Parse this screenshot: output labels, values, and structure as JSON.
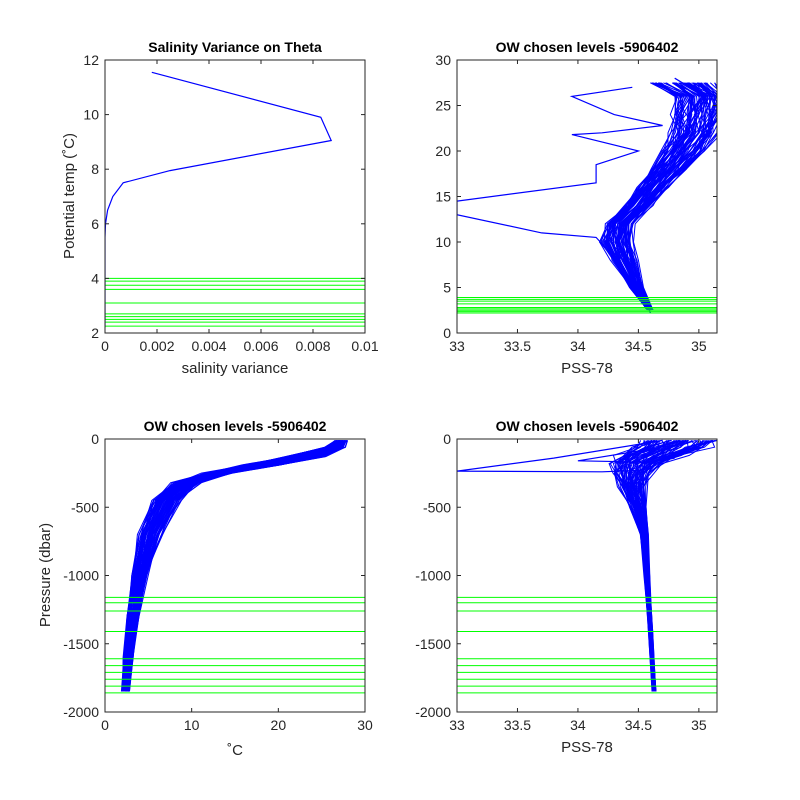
{
  "chart_data": [
    {
      "type": "line",
      "title": "Salinity Variance on Theta",
      "xlabel": "salinity variance",
      "ylabel": "Potential temp (˚C)",
      "xlim": [
        0,
        0.01
      ],
      "ylim": [
        2,
        12
      ],
      "xticks": [
        0,
        0.002,
        0.004,
        0.006,
        0.008,
        0.01
      ],
      "xtick_labels": [
        "0",
        "0.002",
        "0.004",
        "0.006",
        "0.008",
        "0.01"
      ],
      "yticks": [
        2,
        4,
        6,
        8,
        10,
        12
      ],
      "ytick_labels": [
        "2",
        "4",
        "6",
        "8",
        "10",
        "12"
      ],
      "series": [
        {
          "color": "#0000ff",
          "points": [
            [
              0.0018,
              11.55
            ],
            [
              0.0083,
              9.9
            ],
            [
              0.0087,
              9.05
            ],
            [
              0.0025,
              7.95
            ],
            [
              0.0007,
              7.5
            ],
            [
              0.0003,
              7.0
            ],
            [
              0.0001,
              6.5
            ],
            [
              2e-05,
              6.0
            ],
            [
              0.0,
              5.5
            ],
            [
              0.0,
              2.2
            ]
          ]
        }
      ],
      "hlines": [
        2.25,
        2.4,
        2.5,
        2.6,
        2.7,
        3.1,
        3.6,
        3.75,
        3.9,
        4.0
      ],
      "hline_color": "#00ff00"
    },
    {
      "type": "line",
      "title": "OW chosen levels -5906402",
      "xlabel": "PSS-78",
      "ylabel": "",
      "xlim": [
        33,
        35.15
      ],
      "ylim": [
        0,
        30
      ],
      "xticks": [
        33,
        33.5,
        34,
        34.5,
        35
      ],
      "xtick_labels": [
        "33",
        "33.5",
        "34",
        "34.5",
        "35"
      ],
      "yticks": [
        0,
        5,
        10,
        15,
        20,
        25,
        30
      ],
      "ytick_labels": [
        "0",
        "5",
        "10",
        "15",
        "20",
        "25",
        "30"
      ],
      "series": [
        {
          "color": "#0000ff",
          "points": [
            [
              34.6,
              2.2
            ],
            [
              34.52,
              5.0
            ],
            [
              34.42,
              8.0
            ],
            [
              34.3,
              9.5
            ],
            [
              34.25,
              11.0
            ],
            [
              34.32,
              13.0
            ],
            [
              34.45,
              15.0
            ],
            [
              34.6,
              17.0
            ],
            [
              34.75,
              19.5
            ],
            [
              34.9,
              22.0
            ],
            [
              35.0,
              24.0
            ],
            [
              35.05,
              26.0
            ],
            [
              34.8,
              28.0
            ]
          ]
        },
        {
          "color": "#0000ff",
          "points": [
            [
              34.6,
              2.2
            ],
            [
              34.5,
              5.0
            ],
            [
              34.38,
              8.0
            ],
            [
              34.22,
              9.5
            ],
            [
              34.15,
              10.5
            ],
            [
              33.7,
              11.0
            ],
            [
              33.0,
              13.0
            ],
            [
              33.0,
              14.5
            ],
            [
              34.15,
              16.5
            ],
            [
              34.15,
              18.5
            ],
            [
              34.5,
              20.0
            ],
            [
              33.95,
              21.8
            ],
            [
              34.2,
              22.0
            ],
            [
              34.7,
              22.8
            ],
            [
              34.3,
              24.0
            ],
            [
              33.95,
              26.0
            ],
            [
              34.45,
              27.0
            ]
          ]
        }
      ],
      "band_center": [
        [
          34.6,
          2.5
        ],
        [
          34.48,
          5.0
        ],
        [
          34.38,
          8.0
        ],
        [
          34.32,
          10.0
        ],
        [
          34.35,
          12.0
        ],
        [
          34.5,
          14.0
        ],
        [
          34.62,
          16.0
        ],
        [
          34.75,
          18.0
        ],
        [
          34.87,
          20.0
        ],
        [
          34.96,
          22.0
        ],
        [
          35.0,
          24.0
        ],
        [
          35.02,
          26.0
        ],
        [
          34.85,
          27.5
        ]
      ],
      "band_half_width": [
        0.02,
        0.05,
        0.1,
        0.12,
        0.1,
        0.1,
        0.12,
        0.14,
        0.16,
        0.18,
        0.2,
        0.2,
        0.25
      ],
      "hlines": [
        2.2,
        2.35,
        2.5,
        2.65,
        2.8,
        3.2,
        3.5,
        3.7,
        3.9
      ],
      "hline_color": "#00ff00"
    },
    {
      "type": "line",
      "title": "OW chosen levels -5906402",
      "xlabel": "˚C",
      "ylabel": "Pressure (dbar)",
      "xlim": [
        0,
        30
      ],
      "ylim": [
        -2000,
        0
      ],
      "xticks": [
        0,
        10,
        20,
        30
      ],
      "xtick_labels": [
        "0",
        "10",
        "20",
        "30"
      ],
      "yticks": [
        -2000,
        -1500,
        -1000,
        -500,
        0
      ],
      "ytick_labels": [
        "-2000",
        "-1500",
        "-1000",
        "-500",
        "0"
      ],
      "band_center": [
        [
          2.4,
          -1850
        ],
        [
          2.7,
          -1600
        ],
        [
          3.2,
          -1300
        ],
        [
          4.0,
          -1000
        ],
        [
          5.2,
          -700
        ],
        [
          7.0,
          -450
        ],
        [
          9.5,
          -320
        ],
        [
          13.0,
          -250
        ],
        [
          18.0,
          -190
        ],
        [
          23.0,
          -130
        ],
        [
          26.5,
          -60
        ],
        [
          27.3,
          -10
        ]
      ],
      "band_half_width": [
        0.4,
        0.5,
        0.6,
        0.8,
        1.2,
        1.5,
        1.5,
        1.5,
        2.0,
        2.0,
        1.0,
        0.6
      ],
      "hlines": [
        -1160,
        -1200,
        -1260,
        -1410,
        -1610,
        -1660,
        -1710,
        -1760,
        -1810,
        -1860
      ],
      "hline_color": "#00ff00"
    },
    {
      "type": "line",
      "title": "OW chosen levels -5906402",
      "xlabel": "PSS-78",
      "ylabel": "",
      "xlim": [
        33,
        35.15
      ],
      "ylim": [
        -2000,
        0
      ],
      "xticks": [
        33,
        33.5,
        34,
        34.5,
        35
      ],
      "xtick_labels": [
        "33",
        "33.5",
        "34",
        "34.5",
        "35"
      ],
      "yticks": [
        -2000,
        -1500,
        -1000,
        -500,
        0
      ],
      "ytick_labels": [
        "-2000",
        "-1500",
        "-1000",
        "-500",
        "0"
      ],
      "band_center": [
        [
          34.63,
          -1850
        ],
        [
          34.6,
          -1400
        ],
        [
          34.57,
          -1000
        ],
        [
          34.55,
          -700
        ],
        [
          34.5,
          -500
        ],
        [
          34.45,
          -350
        ],
        [
          34.45,
          -250
        ],
        [
          34.5,
          -180
        ],
        [
          34.6,
          -120
        ],
        [
          34.75,
          -60
        ],
        [
          34.85,
          -10
        ]
      ],
      "band_half_width": [
        0.015,
        0.015,
        0.02,
        0.03,
        0.06,
        0.1,
        0.15,
        0.2,
        0.25,
        0.3,
        0.3
      ],
      "series": [
        {
          "color": "#0000ff",
          "points": [
            [
              34.7,
              -10
            ],
            [
              33.8,
              -140
            ],
            [
              33.0,
              -235
            ],
            [
              34.2,
              -240
            ],
            [
              34.5,
              -230
            ],
            [
              34.6,
              -200
            ]
          ]
        },
        {
          "color": "#0000ff",
          "points": [
            [
              34.9,
              -30
            ],
            [
              34.0,
              -160
            ],
            [
              34.6,
              -170
            ],
            [
              34.8,
              -140
            ]
          ]
        }
      ],
      "hlines": [
        -1160,
        -1200,
        -1260,
        -1410,
        -1610,
        -1660,
        -1710,
        -1760,
        -1810,
        -1860
      ],
      "hline_color": "#00ff00"
    }
  ]
}
